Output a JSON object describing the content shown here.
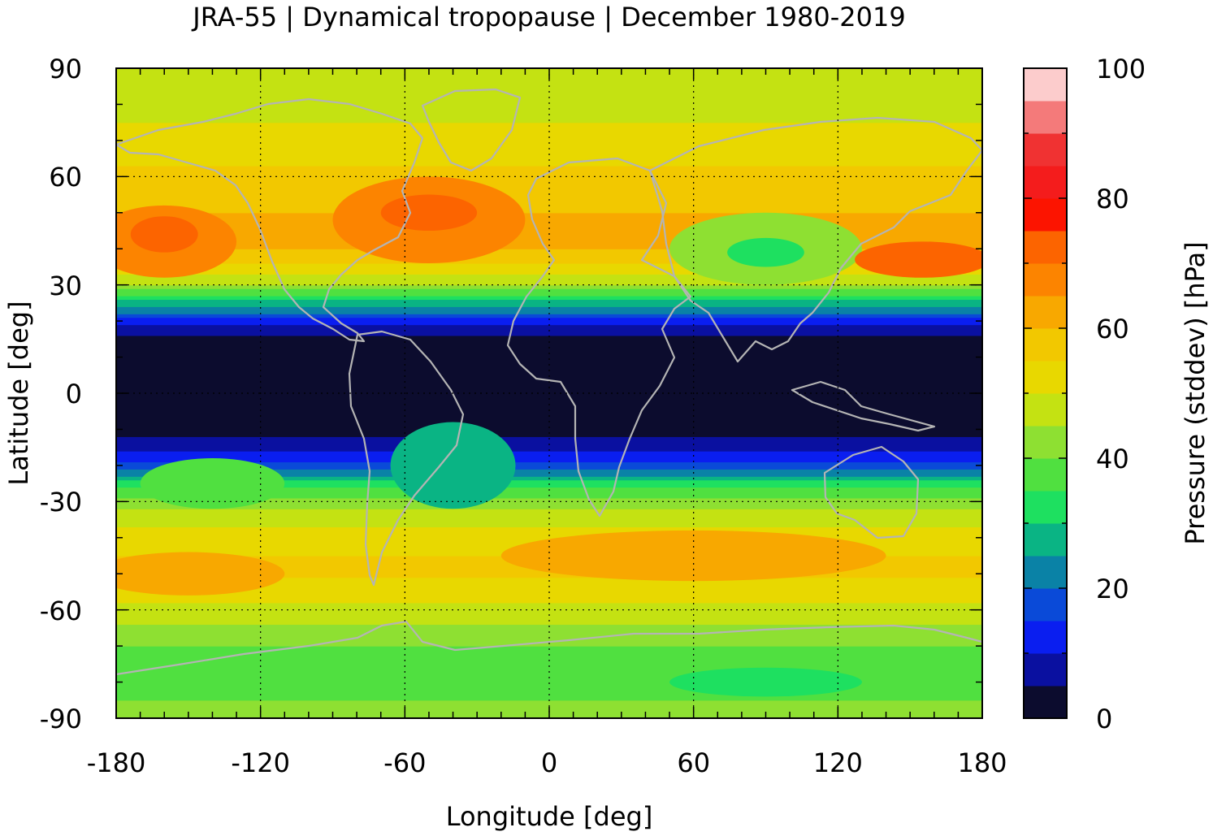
{
  "chart_data": {
    "type": "heatmap",
    "title": "JRA-55 | Dynamical tropopause | December 1980-2019",
    "xlabel": "Longitude [deg]",
    "ylabel": "Latitude [deg]",
    "xlim": [
      -180,
      180
    ],
    "ylim": [
      -90,
      90
    ],
    "xticks": [
      "-180",
      "-120",
      "-60",
      "0",
      "60",
      "120",
      "180"
    ],
    "yticks": [
      "90",
      "60",
      "30",
      "0",
      "-30",
      "-60",
      "-90"
    ],
    "grid": true,
    "colorbar": {
      "label": "Pressure (stddev) [hPa]",
      "range": [
        0,
        100
      ],
      "step": 5,
      "ticks": [
        "0",
        "20",
        "40",
        "60",
        "80",
        "100"
      ],
      "colors": [
        "#0c0c2e",
        "#0a10a0",
        "#0a1ef0",
        "#0a4ad8",
        "#0a82a6",
        "#0ab484",
        "#1ee060",
        "#50e040",
        "#8ee032",
        "#c4e212",
        "#e8d800",
        "#f2c800",
        "#f8a800",
        "#fc8400",
        "#fc6400",
        "#fc1400",
        "#f41c1c",
        "#f03232",
        "#f47a7a",
        "#fccccc"
      ]
    },
    "zonal_profile": {
      "latitudes": [
        -90,
        -80,
        -70,
        -60,
        -50,
        -40,
        -30,
        -25,
        -20,
        -15,
        -10,
        0,
        10,
        15,
        20,
        25,
        30,
        35,
        40,
        50,
        60,
        70,
        80,
        90
      ],
      "values": [
        42,
        38,
        40,
        48,
        56,
        54,
        42,
        32,
        16,
        8,
        3,
        2,
        2,
        4,
        12,
        28,
        44,
        54,
        60,
        60,
        56,
        52,
        48,
        45
      ]
    }
  }
}
